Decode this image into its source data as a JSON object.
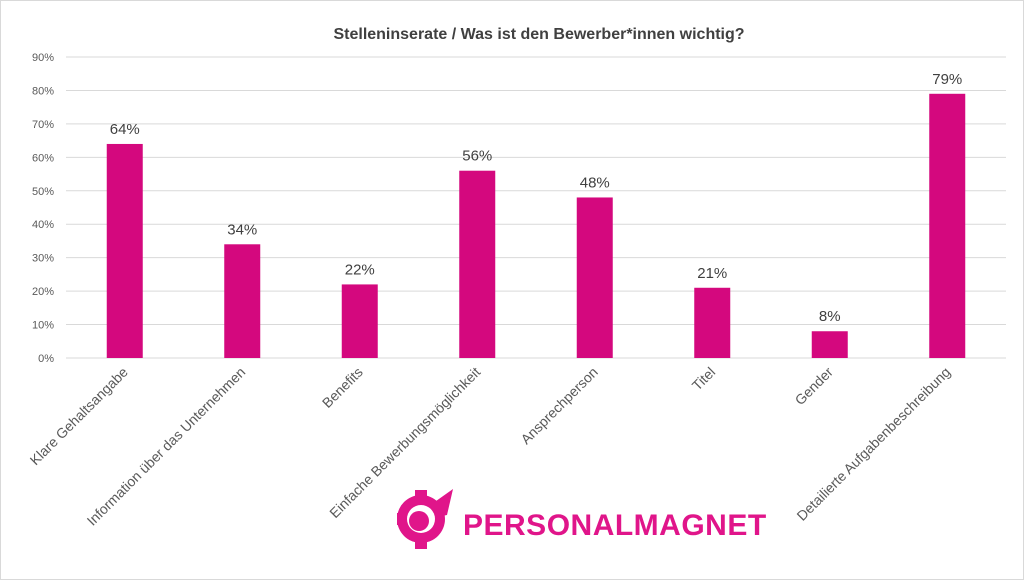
{
  "chart_data": {
    "type": "bar",
    "title": "Stelleninserate / Was ist den Bewerber*innen wichtig?",
    "categories": [
      "Klare Gehaltsangabe",
      "Information über das Unternehmen",
      "Benefits",
      "Einfache Bewerbungsmöglichkeit",
      "Ansprechperson",
      "Titel",
      "Gender",
      "Detailierte Aufgabenbeschreibung"
    ],
    "values": [
      64,
      34,
      22,
      56,
      48,
      21,
      8,
      79
    ],
    "data_labels": [
      "64%",
      "34%",
      "22%",
      "56%",
      "48%",
      "21%",
      "8%",
      "79%"
    ],
    "yticks": [
      "0%",
      "10%",
      "20%",
      "30%",
      "40%",
      "50%",
      "60%",
      "70%",
      "80%",
      "90%"
    ],
    "ylim": [
      0,
      90
    ],
    "grid": true,
    "xlabel": "",
    "ylabel": "",
    "colors": {
      "bar": "#D4087E",
      "grid": "#d9d9d9",
      "text": "#595959"
    }
  },
  "logo": {
    "text": "PERSONALMAGNET",
    "color": "#E0158A"
  }
}
